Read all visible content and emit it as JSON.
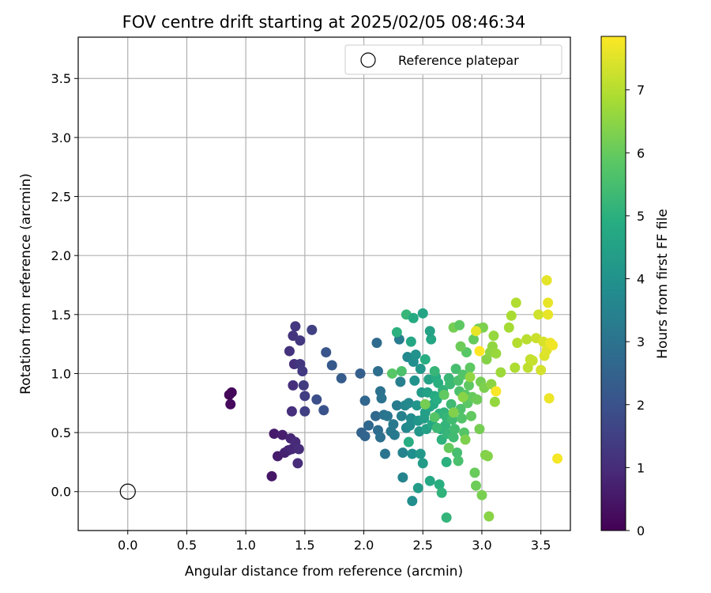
{
  "chart_data": {
    "type": "scatter",
    "title": "FOV centre drift starting at 2025/02/05 08:46:34",
    "xlabel": "Angular distance from reference (arcmin)",
    "ylabel": "Rotation from reference (arcmin)",
    "xlim": [
      -0.42,
      3.75
    ],
    "ylim": [
      -0.33,
      3.85
    ],
    "xticks": [
      0.0,
      0.5,
      1.0,
      1.5,
      2.0,
      2.5,
      3.0,
      3.5
    ],
    "yticks": [
      0.0,
      0.5,
      1.0,
      1.5,
      2.0,
      2.5,
      3.0,
      3.5
    ],
    "grid": true,
    "legend": {
      "position": "top-right",
      "entries": [
        "Reference platepar"
      ]
    },
    "colorbar": {
      "label": "Hours from first FF file",
      "range": [
        0,
        7.85
      ],
      "ticks": [
        0,
        1,
        2,
        3,
        4,
        5,
        6,
        7
      ],
      "colormap": "viridis"
    },
    "reference": {
      "x": 0.0,
      "y": 0.0
    },
    "points": [
      {
        "x": 0.86,
        "y": 0.82,
        "t": 0.1
      },
      {
        "x": 0.88,
        "y": 0.84,
        "t": 0.15
      },
      {
        "x": 0.87,
        "y": 0.74,
        "t": 0.2
      },
      {
        "x": 1.22,
        "y": 0.13,
        "t": 0.5
      },
      {
        "x": 1.24,
        "y": 0.49,
        "t": 0.6
      },
      {
        "x": 1.27,
        "y": 0.3,
        "t": 0.65
      },
      {
        "x": 1.31,
        "y": 0.48,
        "t": 0.7
      },
      {
        "x": 1.33,
        "y": 0.33,
        "t": 0.75
      },
      {
        "x": 1.36,
        "y": 0.35,
        "t": 0.8
      },
      {
        "x": 1.38,
        "y": 0.45,
        "t": 0.85
      },
      {
        "x": 1.39,
        "y": 0.36,
        "t": 0.9
      },
      {
        "x": 1.42,
        "y": 0.42,
        "t": 0.95
      },
      {
        "x": 1.44,
        "y": 0.24,
        "t": 1.0
      },
      {
        "x": 1.45,
        "y": 0.36,
        "t": 1.0
      },
      {
        "x": 1.39,
        "y": 0.68,
        "t": 1.05
      },
      {
        "x": 1.4,
        "y": 0.9,
        "t": 1.1
      },
      {
        "x": 1.41,
        "y": 1.08,
        "t": 1.1
      },
      {
        "x": 1.37,
        "y": 1.19,
        "t": 1.15
      },
      {
        "x": 1.4,
        "y": 1.32,
        "t": 1.2
      },
      {
        "x": 1.42,
        "y": 1.4,
        "t": 1.25
      },
      {
        "x": 1.46,
        "y": 1.28,
        "t": 1.3
      },
      {
        "x": 1.46,
        "y": 1.08,
        "t": 1.3
      },
      {
        "x": 1.48,
        "y": 1.02,
        "t": 1.35
      },
      {
        "x": 1.49,
        "y": 0.9,
        "t": 1.4
      },
      {
        "x": 1.5,
        "y": 0.81,
        "t": 1.45
      },
      {
        "x": 1.5,
        "y": 0.68,
        "t": 1.5
      },
      {
        "x": 1.56,
        "y": 1.37,
        "t": 1.5
      },
      {
        "x": 1.6,
        "y": 0.78,
        "t": 1.9
      },
      {
        "x": 1.66,
        "y": 0.69,
        "t": 2.0
      },
      {
        "x": 1.68,
        "y": 1.18,
        "t": 2.1
      },
      {
        "x": 1.73,
        "y": 1.07,
        "t": 2.2
      },
      {
        "x": 1.81,
        "y": 0.96,
        "t": 2.3
      },
      {
        "x": 1.97,
        "y": 1.0,
        "t": 2.4
      },
      {
        "x": 1.98,
        "y": 0.5,
        "t": 2.5
      },
      {
        "x": 2.01,
        "y": 0.47,
        "t": 2.55
      },
      {
        "x": 2.01,
        "y": 0.77,
        "t": 2.6
      },
      {
        "x": 2.04,
        "y": 0.56,
        "t": 2.65
      },
      {
        "x": 2.1,
        "y": 0.64,
        "t": 2.7
      },
      {
        "x": 2.11,
        "y": 1.26,
        "t": 2.75
      },
      {
        "x": 2.12,
        "y": 0.52,
        "t": 2.8
      },
      {
        "x": 2.12,
        "y": 1.02,
        "t": 2.85
      },
      {
        "x": 2.14,
        "y": 0.46,
        "t": 2.9
      },
      {
        "x": 2.14,
        "y": 0.85,
        "t": 2.95
      },
      {
        "x": 2.15,
        "y": 0.79,
        "t": 3.0
      },
      {
        "x": 2.17,
        "y": 0.65,
        "t": 3.0
      },
      {
        "x": 2.18,
        "y": 0.32,
        "t": 3.05
      },
      {
        "x": 2.2,
        "y": 0.64,
        "t": 3.1
      },
      {
        "x": 2.23,
        "y": 0.51,
        "t": 3.15
      },
      {
        "x": 2.25,
        "y": 0.57,
        "t": 3.2
      },
      {
        "x": 2.26,
        "y": 0.48,
        "t": 3.2
      },
      {
        "x": 2.28,
        "y": 0.73,
        "t": 3.3
      },
      {
        "x": 2.3,
        "y": 1.29,
        "t": 3.3
      },
      {
        "x": 2.31,
        "y": 0.93,
        "t": 3.4
      },
      {
        "x": 2.32,
        "y": 0.64,
        "t": 3.45
      },
      {
        "x": 2.33,
        "y": 0.33,
        "t": 3.5
      },
      {
        "x": 2.33,
        "y": 0.12,
        "t": 3.55
      },
      {
        "x": 2.35,
        "y": 0.73,
        "t": 3.6
      },
      {
        "x": 2.36,
        "y": 0.54,
        "t": 3.6
      },
      {
        "x": 2.37,
        "y": 1.14,
        "t": 3.7
      },
      {
        "x": 2.38,
        "y": 0.75,
        "t": 3.7
      },
      {
        "x": 2.39,
        "y": 0.56,
        "t": 3.8
      },
      {
        "x": 2.4,
        "y": 0.62,
        "t": 3.8
      },
      {
        "x": 2.41,
        "y": -0.08,
        "t": 3.85
      },
      {
        "x": 2.41,
        "y": 0.32,
        "t": 3.9
      },
      {
        "x": 2.42,
        "y": 1.1,
        "t": 3.9
      },
      {
        "x": 2.43,
        "y": 0.94,
        "t": 4.0
      },
      {
        "x": 2.44,
        "y": 1.16,
        "t": 4.0
      },
      {
        "x": 2.45,
        "y": 0.73,
        "t": 4.1
      },
      {
        "x": 2.46,
        "y": 0.6,
        "t": 4.1
      },
      {
        "x": 2.47,
        "y": 0.51,
        "t": 4.15
      },
      {
        "x": 2.48,
        "y": 0.32,
        "t": 4.2
      },
      {
        "x": 2.48,
        "y": 1.04,
        "t": 4.2
      },
      {
        "x": 2.49,
        "y": 0.84,
        "t": 4.3
      },
      {
        "x": 2.5,
        "y": 0.24,
        "t": 4.3
      },
      {
        "x": 2.51,
        "y": 0.62,
        "t": 4.35
      },
      {
        "x": 2.52,
        "y": 0.67,
        "t": 4.4
      },
      {
        "x": 2.53,
        "y": 0.53,
        "t": 4.45
      },
      {
        "x": 2.54,
        "y": 0.84,
        "t": 4.5
      },
      {
        "x": 2.55,
        "y": 0.95,
        "t": 4.55
      },
      {
        "x": 2.56,
        "y": 0.72,
        "t": 4.6
      },
      {
        "x": 2.57,
        "y": 1.29,
        "t": 4.65
      },
      {
        "x": 2.58,
        "y": 0.57,
        "t": 4.7
      },
      {
        "x": 2.59,
        "y": 0.74,
        "t": 4.75
      },
      {
        "x": 2.6,
        "y": 0.81,
        "t": 4.8
      },
      {
        "x": 2.61,
        "y": 0.97,
        "t": 4.85
      },
      {
        "x": 2.62,
        "y": 0.78,
        "t": 4.9
      },
      {
        "x": 2.63,
        "y": 0.92,
        "t": 4.95
      },
      {
        "x": 2.64,
        "y": 0.66,
        "t": 5.0
      },
      {
        "x": 2.65,
        "y": 0.53,
        "t": 5.0
      },
      {
        "x": 2.66,
        "y": 0.44,
        "t": 5.05
      },
      {
        "x": 2.67,
        "y": 0.86,
        "t": 5.1
      },
      {
        "x": 2.68,
        "y": 0.67,
        "t": 5.1
      },
      {
        "x": 2.69,
        "y": 0.56,
        "t": 5.15
      },
      {
        "x": 2.7,
        "y": 0.63,
        "t": 5.2
      },
      {
        "x": 2.71,
        "y": 0.49,
        "t": 5.2
      },
      {
        "x": 2.72,
        "y": 0.96,
        "t": 5.25
      },
      {
        "x": 2.73,
        "y": 0.91,
        "t": 5.3
      },
      {
        "x": 2.74,
        "y": 0.74,
        "t": 5.35
      },
      {
        "x": 2.75,
        "y": 0.61,
        "t": 5.4
      },
      {
        "x": 2.76,
        "y": 0.46,
        "t": 5.4
      },
      {
        "x": 2.77,
        "y": 0.53,
        "t": 5.45
      },
      {
        "x": 2.78,
        "y": 1.04,
        "t": 5.5
      },
      {
        "x": 2.79,
        "y": 0.33,
        "t": 5.5
      },
      {
        "x": 2.8,
        "y": 0.26,
        "t": 5.55
      },
      {
        "x": 2.8,
        "y": 0.94,
        "t": 5.6
      },
      {
        "x": 2.81,
        "y": 0.85,
        "t": 5.6
      },
      {
        "x": 2.82,
        "y": 0.7,
        "t": 5.65
      },
      {
        "x": 2.83,
        "y": 0.62,
        "t": 5.7
      },
      {
        "x": 2.84,
        "y": 0.99,
        "t": 5.7
      },
      {
        "x": 2.85,
        "y": 0.5,
        "t": 5.75
      },
      {
        "x": 2.86,
        "y": 0.82,
        "t": 5.8
      },
      {
        "x": 2.87,
        "y": 1.18,
        "t": 5.8
      },
      {
        "x": 2.88,
        "y": 0.75,
        "t": 5.85
      },
      {
        "x": 2.89,
        "y": 0.9,
        "t": 5.9
      },
      {
        "x": 2.9,
        "y": 1.05,
        "t": 5.9
      },
      {
        "x": 2.91,
        "y": 0.64,
        "t": 5.95
      },
      {
        "x": 2.92,
        "y": 0.8,
        "t": 6.0
      },
      {
        "x": 2.93,
        "y": 1.29,
        "t": 6.0
      },
      {
        "x": 2.94,
        "y": 0.16,
        "t": 6.05
      },
      {
        "x": 2.95,
        "y": 0.05,
        "t": 6.1
      },
      {
        "x": 2.96,
        "y": 0.78,
        "t": 6.1
      },
      {
        "x": 2.97,
        "y": 1.38,
        "t": 6.15
      },
      {
        "x": 2.98,
        "y": 0.53,
        "t": 6.2
      },
      {
        "x": 2.99,
        "y": 0.93,
        "t": 6.2
      },
      {
        "x": 3.0,
        "y": -0.03,
        "t": 6.25
      },
      {
        "x": 3.01,
        "y": 1.39,
        "t": 6.3
      },
      {
        "x": 3.02,
        "y": 0.88,
        "t": 6.3
      },
      {
        "x": 3.03,
        "y": 0.31,
        "t": 6.35
      },
      {
        "x": 3.04,
        "y": 1.12,
        "t": 6.4
      },
      {
        "x": 3.05,
        "y": 0.3,
        "t": 6.4
      },
      {
        "x": 3.06,
        "y": -0.21,
        "t": 6.45
      },
      {
        "x": 3.07,
        "y": 1.18,
        "t": 6.5
      },
      {
        "x": 3.08,
        "y": 0.91,
        "t": 6.5
      },
      {
        "x": 3.09,
        "y": 1.23,
        "t": 6.55
      },
      {
        "x": 3.1,
        "y": 1.32,
        "t": 6.6
      },
      {
        "x": 3.11,
        "y": 0.76,
        "t": 6.6
      },
      {
        "x": 3.12,
        "y": 1.17,
        "t": 6.65
      },
      {
        "x": 3.16,
        "y": 1.01,
        "t": 6.7
      },
      {
        "x": 3.23,
        "y": 1.39,
        "t": 6.8
      },
      {
        "x": 3.25,
        "y": 1.49,
        "t": 6.85
      },
      {
        "x": 3.28,
        "y": 1.05,
        "t": 6.9
      },
      {
        "x": 3.29,
        "y": 1.6,
        "t": 6.95
      },
      {
        "x": 3.3,
        "y": 1.26,
        "t": 7.0
      },
      {
        "x": 3.38,
        "y": 1.29,
        "t": 7.05
      },
      {
        "x": 3.39,
        "y": 1.05,
        "t": 7.1
      },
      {
        "x": 3.41,
        "y": 1.12,
        "t": 7.15
      },
      {
        "x": 3.43,
        "y": 1.11,
        "t": 7.2
      },
      {
        "x": 3.46,
        "y": 1.3,
        "t": 7.25
      },
      {
        "x": 3.48,
        "y": 1.5,
        "t": 7.3
      },
      {
        "x": 3.5,
        "y": 1.03,
        "t": 7.35
      },
      {
        "x": 3.52,
        "y": 1.27,
        "t": 7.4
      },
      {
        "x": 3.53,
        "y": 1.15,
        "t": 7.45
      },
      {
        "x": 3.55,
        "y": 1.2,
        "t": 7.5
      },
      {
        "x": 3.55,
        "y": 1.79,
        "t": 7.55
      },
      {
        "x": 3.56,
        "y": 1.6,
        "t": 7.6
      },
      {
        "x": 3.56,
        "y": 1.5,
        "t": 7.6
      },
      {
        "x": 3.57,
        "y": 0.79,
        "t": 7.65
      },
      {
        "x": 3.58,
        "y": 1.26,
        "t": 7.65
      },
      {
        "x": 3.6,
        "y": 1.24,
        "t": 7.7
      },
      {
        "x": 3.64,
        "y": 0.28,
        "t": 7.75
      },
      {
        "x": 2.24,
        "y": 1.0,
        "t": 5.8
      },
      {
        "x": 2.32,
        "y": 1.02,
        "t": 5.6
      },
      {
        "x": 2.36,
        "y": 1.5,
        "t": 5.2
      },
      {
        "x": 2.42,
        "y": 1.47,
        "t": 4.8
      },
      {
        "x": 2.5,
        "y": 1.51,
        "t": 4.6
      },
      {
        "x": 2.56,
        "y": 1.36,
        "t": 4.5
      },
      {
        "x": 2.38,
        "y": 0.42,
        "t": 4.9
      },
      {
        "x": 2.62,
        "y": 0.54,
        "t": 5.3
      },
      {
        "x": 2.7,
        "y": 0.25,
        "t": 5.0
      },
      {
        "x": 2.56,
        "y": 0.09,
        "t": 4.7
      },
      {
        "x": 2.64,
        "y": 0.06,
        "t": 4.95
      },
      {
        "x": 2.66,
        "y": -0.01,
        "t": 5.1
      },
      {
        "x": 2.7,
        "y": -0.22,
        "t": 5.15
      },
      {
        "x": 2.46,
        "y": 0.03,
        "t": 4.3
      },
      {
        "x": 2.28,
        "y": 1.35,
        "t": 5.0
      },
      {
        "x": 2.4,
        "y": 1.27,
        "t": 4.7
      },
      {
        "x": 2.52,
        "y": 1.12,
        "t": 4.9
      },
      {
        "x": 2.6,
        "y": 1.02,
        "t": 5.2
      },
      {
        "x": 2.76,
        "y": 1.39,
        "t": 6.2
      },
      {
        "x": 2.81,
        "y": 1.41,
        "t": 5.9
      },
      {
        "x": 2.82,
        "y": 1.23,
        "t": 6.1
      },
      {
        "x": 2.95,
        "y": 1.36,
        "t": 7.6
      },
      {
        "x": 3.12,
        "y": 0.85,
        "t": 7.8
      },
      {
        "x": 2.98,
        "y": 1.19,
        "t": 7.85
      },
      {
        "x": 2.86,
        "y": 0.44,
        "t": 6.3
      },
      {
        "x": 2.72,
        "y": 0.37,
        "t": 6.0
      },
      {
        "x": 2.6,
        "y": 0.63,
        "t": 5.75
      },
      {
        "x": 2.52,
        "y": 0.74,
        "t": 6.2
      },
      {
        "x": 2.68,
        "y": 0.82,
        "t": 5.95
      },
      {
        "x": 2.76,
        "y": 0.67,
        "t": 6.35
      },
      {
        "x": 2.84,
        "y": 0.8,
        "t": 6.45
      },
      {
        "x": 2.9,
        "y": 0.97,
        "t": 6.55
      }
    ]
  }
}
